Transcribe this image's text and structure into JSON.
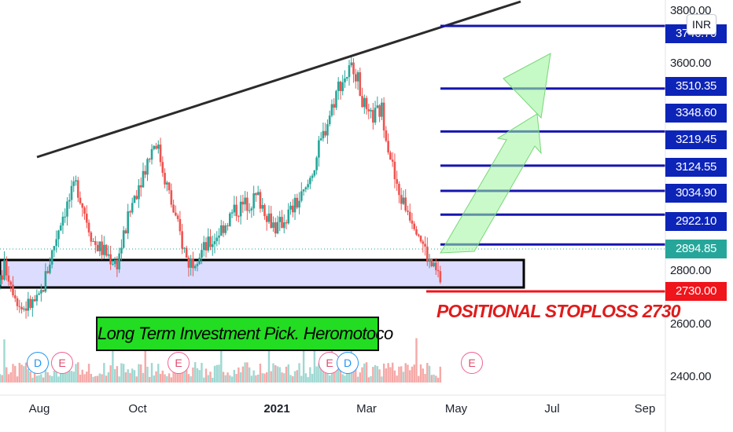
{
  "currency": "INR",
  "price_axis": {
    "labels": [
      "3800.00",
      "3600.00",
      "2800.00",
      "2600.00",
      "2400.00"
    ]
  },
  "time_axis": {
    "labels": [
      "Aug",
      "Oct",
      "2021",
      "Mar",
      "May",
      "Jul",
      "Sep"
    ]
  },
  "target_levels": [
    "3746.70",
    "3510.35",
    "3348.60",
    "3219.45",
    "3124.55",
    "3034.90",
    "2922.10"
  ],
  "current_price": "2894.85",
  "stoploss_price": "2730.00",
  "annotations": {
    "title_box": "Long Term Investment Pick. Heromotoco",
    "stoploss_text": "POSITIONAL STOPLOSS  2730"
  },
  "events": [
    {
      "type": "D"
    },
    {
      "type": "E"
    },
    {
      "type": "E"
    },
    {
      "type": "E"
    },
    {
      "type": "D"
    },
    {
      "type": "E"
    }
  ],
  "colors": {
    "bull": "#26a69a",
    "bear": "#ef5350",
    "level_line": "#1515b0",
    "level_tag": "#0d24b8",
    "current_tag": "#26a69a",
    "stoploss": "#f0141b",
    "support_zone": "#dcdcff",
    "trendline": "#2b2b2b",
    "arrow": "#8ef08e"
  },
  "chart_data": {
    "type": "candlestick",
    "symbol": "Heromotoco",
    "currency": "INR",
    "y_axis_ticks": [
      2400,
      2600,
      2800,
      3600,
      3800
    ],
    "x_axis_ticks": [
      "Aug",
      "Oct",
      "2021",
      "Mar",
      "May",
      "Jul",
      "Sep"
    ],
    "ylim": [
      2350,
      3860
    ],
    "series_close_approx": [
      {
        "x": "2020-07-01",
        "y": 2720
      },
      {
        "x": "2020-07-10",
        "y": 2840
      },
      {
        "x": "2020-07-20",
        "y": 2680
      },
      {
        "x": "2020-08-01",
        "y": 2710
      },
      {
        "x": "2020-08-15",
        "y": 3020
      },
      {
        "x": "2020-08-25",
        "y": 3150
      },
      {
        "x": "2020-09-05",
        "y": 2930
      },
      {
        "x": "2020-09-20",
        "y": 2850
      },
      {
        "x": "2020-10-01",
        "y": 3100
      },
      {
        "x": "2020-10-15",
        "y": 3320
      },
      {
        "x": "2020-10-25",
        "y": 3080
      },
      {
        "x": "2020-11-05",
        "y": 2850
      },
      {
        "x": "2020-11-20",
        "y": 2930
      },
      {
        "x": "2020-12-05",
        "y": 3050
      },
      {
        "x": "2020-12-20",
        "y": 3100
      },
      {
        "x": "2021-01-01",
        "y": 2980
      },
      {
        "x": "2021-01-20",
        "y": 3120
      },
      {
        "x": "2021-02-01",
        "y": 3350
      },
      {
        "x": "2021-02-10",
        "y": 3520
      },
      {
        "x": "2021-02-20",
        "y": 3600
      },
      {
        "x": "2021-03-01",
        "y": 3390
      },
      {
        "x": "2021-03-10",
        "y": 3430
      },
      {
        "x": "2021-03-20",
        "y": 3120
      },
      {
        "x": "2021-04-01",
        "y": 3000
      },
      {
        "x": "2021-04-10",
        "y": 2850
      },
      {
        "x": "2021-04-20",
        "y": 2760
      },
      {
        "x": "2021-04-28",
        "y": 2895
      }
    ],
    "horizontal_levels": [
      3746.7,
      3510.35,
      3348.6,
      3219.45,
      3124.55,
      3034.9,
      2922.1,
      2894.85,
      2730.0
    ],
    "support_zone": [
      2755,
      2850
    ],
    "trendline": [
      {
        "x": "2020-07-15",
        "y": 3000
      },
      {
        "x": "2021-06-15",
        "y": 3900
      }
    ],
    "grid": false,
    "legend": "none"
  }
}
